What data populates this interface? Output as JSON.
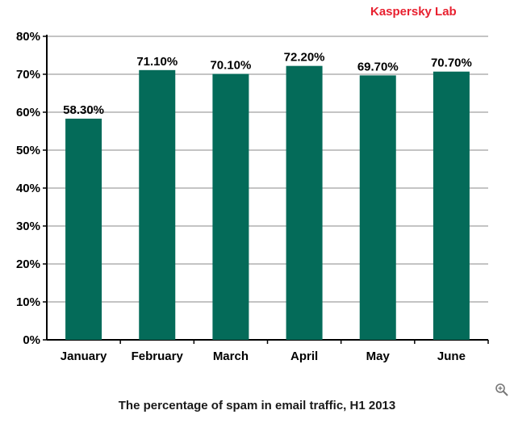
{
  "brand": "Kaspersky Lab",
  "caption": "The percentage of spam in email traffic, H1 2013",
  "colors": {
    "bar": "#046b59",
    "brand": "#e8202f",
    "grid": "#8a8a8a"
  },
  "zoom_icon": "magnifier-icon",
  "chart_data": {
    "type": "bar",
    "title": "The percentage of spam in email traffic, H1 2013",
    "categories": [
      "January",
      "February",
      "March",
      "April",
      "May",
      "June"
    ],
    "values": [
      58.3,
      71.1,
      70.1,
      72.2,
      69.7,
      70.7
    ],
    "data_labels": [
      "58.30%",
      "71.10%",
      "70.10%",
      "72.20%",
      "69.70%",
      "70.70%"
    ],
    "y_ticks": [
      0,
      10,
      20,
      30,
      40,
      50,
      60,
      70,
      80
    ],
    "y_tick_labels": [
      "0%",
      "10%",
      "20%",
      "30%",
      "40%",
      "50%",
      "60%",
      "70%",
      "80%"
    ],
    "ylim": [
      0,
      80
    ],
    "grid": true,
    "legend": "none"
  }
}
